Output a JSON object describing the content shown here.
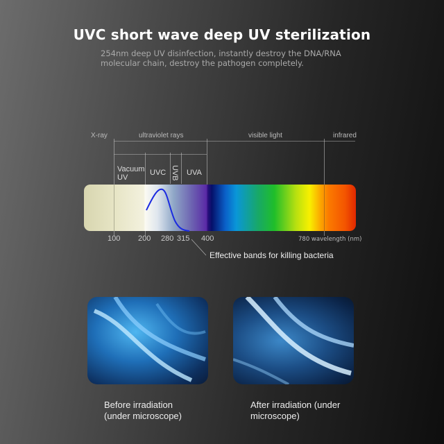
{
  "title": "UVC short wave deep UV sterilization",
  "subtitle": "254nm deep UV disinfection, instantly destroy the DNA/RNA molecular chain, destroy the pathogen completely.",
  "spectrum": {
    "regions": {
      "xray": "X-ray",
      "uv": "ultraviolet rays",
      "visible": "visible light",
      "infrared": "infrared"
    },
    "bands": {
      "vacuum": "Vacuum UV",
      "uvc": "UVC",
      "uvb": "UVB",
      "uva": "UVA"
    },
    "ticks": [
      "100",
      "200",
      "280",
      "315",
      "400"
    ],
    "end_label": "780 wavelength (nm)",
    "callout": "Effective bands for killing bacteria",
    "curve_color": "#1a2ae0"
  },
  "comparison": {
    "before": "Before irradiation (under microscope)",
    "after": "After irradiation (under microscope)"
  }
}
